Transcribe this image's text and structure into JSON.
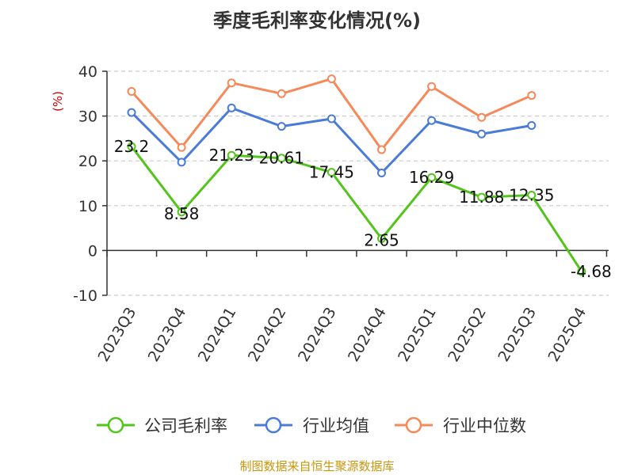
{
  "title": "季度毛利率变化情况(%)",
  "source": "制图数据来自恒生聚源数据库",
  "chart_data": {
    "type": "line",
    "title": "季度毛利率变化情况(%)",
    "ylabel": "(%)",
    "ylim": [
      -10,
      40
    ],
    "yticks": [
      40,
      30,
      20,
      10,
      0,
      -10
    ],
    "grid": "horizontal-dashed",
    "legend_position": "bottom",
    "categories": [
      "2023Q3",
      "2023Q4",
      "2024Q1",
      "2024Q2",
      "2024Q3",
      "2024Q4",
      "2025Q1",
      "2025Q2",
      "2025Q3",
      "2025Q4"
    ],
    "series": [
      {
        "name": "公司毛利率",
        "color": "#52c41a",
        "values": [
          23.2,
          8.58,
          21.23,
          20.61,
          17.45,
          2.65,
          16.29,
          11.88,
          12.35,
          -4.68
        ],
        "labels": [
          "23.2",
          "8.58",
          "21.23",
          "20.61",
          "17.45",
          "2.65",
          "16.29",
          "11.88",
          "12.35",
          "-4.68"
        ]
      },
      {
        "name": "行业均值",
        "color": "#4a7bd8",
        "values": [
          30.8,
          19.7,
          31.8,
          27.7,
          29.4,
          17.3,
          29.0,
          26.0,
          27.9,
          null
        ]
      },
      {
        "name": "行业中位数",
        "color": "#f5895a",
        "values": [
          35.5,
          23.0,
          37.4,
          35.0,
          38.3,
          22.5,
          36.6,
          29.7,
          34.6,
          null
        ]
      }
    ],
    "colors": {
      "axis": "#333333",
      "grid": "#cccccc",
      "unit": "#cc0000"
    }
  }
}
